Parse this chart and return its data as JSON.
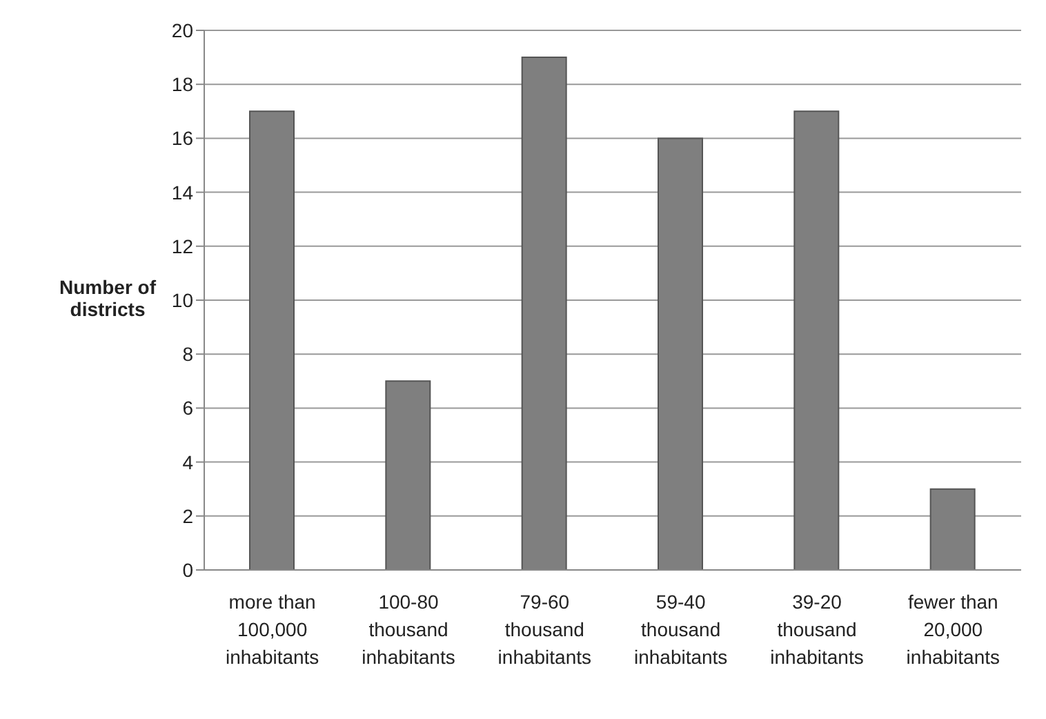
{
  "chart_data": {
    "type": "bar",
    "ylabel": "Number of districts",
    "categories": [
      "more than 100,000 inhabitants",
      "100-80 thousand inhabitants",
      "79-60 thousand inhabitants",
      "59-40 thousand inhabitants",
      "39-20 thousand inhabitants",
      "fewer than 20,000 inhabitants"
    ],
    "values": [
      17,
      7,
      19,
      16,
      17,
      3
    ],
    "color": "#7f7f7f",
    "ylim": [
      0,
      20
    ],
    "yticks": [
      0,
      2,
      4,
      6,
      8,
      10,
      12,
      14,
      16,
      18,
      20
    ],
    "grid": "y"
  }
}
